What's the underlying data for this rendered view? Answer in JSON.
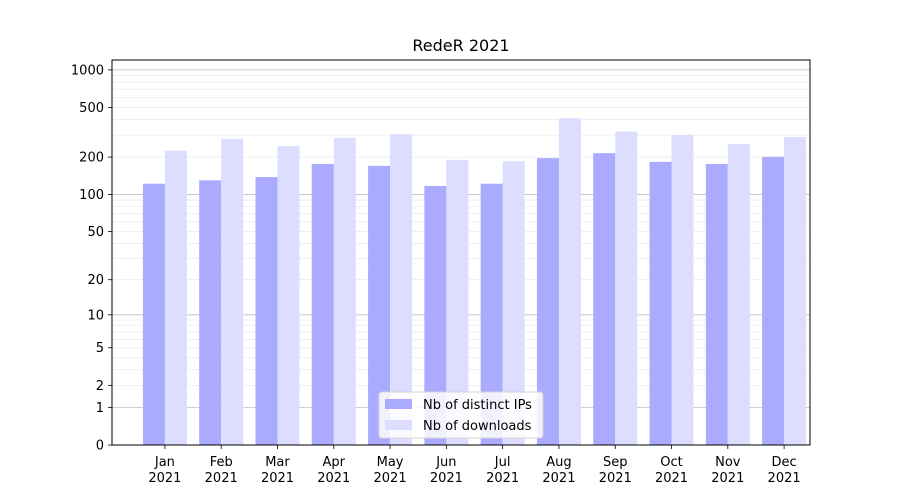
{
  "chart_data": {
    "type": "bar",
    "title": "RedeR 2021",
    "xlabel": "",
    "ylabel": "",
    "yscale": "log1p",
    "ylim": [
      0,
      1200
    ],
    "yticks": [
      0,
      1,
      2,
      5,
      10,
      20,
      50,
      100,
      200,
      500,
      1000
    ],
    "ytick_labels": [
      "0",
      "1",
      "2",
      "5",
      "10",
      "20",
      "50",
      "100",
      "200",
      "500",
      "1000"
    ],
    "grid": true,
    "legend_position": "lower center",
    "categories": [
      "Jan 2021",
      "Feb 2021",
      "Mar 2021",
      "Apr 2021",
      "May 2021",
      "Jun 2021",
      "Jul 2021",
      "Aug 2021",
      "Sep 2021",
      "Oct 2021",
      "Nov 2021",
      "Dec 2021"
    ],
    "category_lines": [
      [
        "Jan",
        "2021"
      ],
      [
        "Feb",
        "2021"
      ],
      [
        "Mar",
        "2021"
      ],
      [
        "Apr",
        "2021"
      ],
      [
        "May",
        "2021"
      ],
      [
        "Jun",
        "2021"
      ],
      [
        "Jul",
        "2021"
      ],
      [
        "Aug",
        "2021"
      ],
      [
        "Sep",
        "2021"
      ],
      [
        "Oct",
        "2021"
      ],
      [
        "Nov",
        "2021"
      ],
      [
        "Dec",
        "2021"
      ]
    ],
    "series": [
      {
        "name": "Nb of distinct IPs",
        "color": "#aaaaff",
        "values": [
          122,
          130,
          138,
          176,
          170,
          117,
          122,
          196,
          215,
          183,
          176,
          201
        ]
      },
      {
        "name": "Nb of downloads",
        "color": "#ddddff",
        "values": [
          225,
          280,
          245,
          285,
          305,
          190,
          185,
          410,
          320,
          300,
          255,
          290
        ]
      }
    ]
  }
}
